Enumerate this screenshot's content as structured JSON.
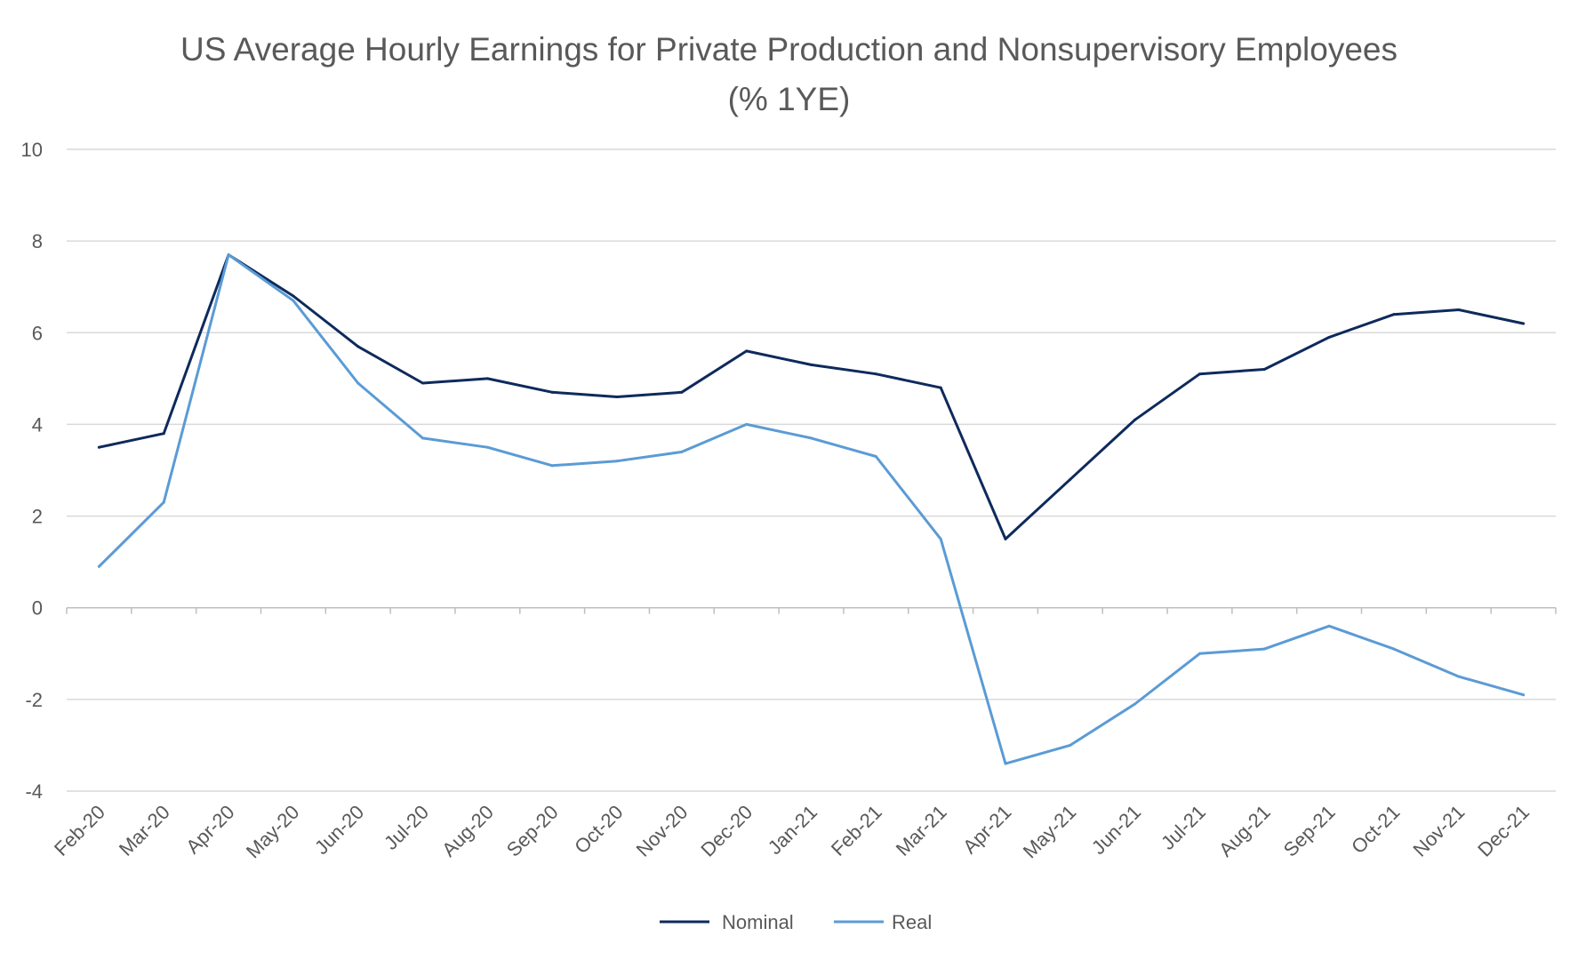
{
  "chart_data": {
    "type": "line",
    "title": "US Average Hourly Earnings for Private Production and Nonsupervisory Employees (% 1YE)",
    "xlabel": "",
    "ylabel": "",
    "ylim": [
      -4,
      10
    ],
    "yticks": [
      10,
      8,
      6,
      4,
      2,
      0,
      -2,
      -4
    ],
    "grid": true,
    "legend_position": "bottom-center",
    "categories": [
      "Feb-20",
      "Mar-20",
      "Apr-20",
      "May-20",
      "Jun-20",
      "Jul-20",
      "Aug-20",
      "Sep-20",
      "Oct-20",
      "Nov-20",
      "Dec-20",
      "Jan-21",
      "Feb-21",
      "Mar-21",
      "Apr-21",
      "May-21",
      "Jun-21",
      "Jul-21",
      "Aug-21",
      "Sep-21",
      "Oct-21",
      "Nov-21",
      "Dec-21"
    ],
    "series": [
      {
        "name": "Nominal",
        "color": "#0e2a5c",
        "values": [
          3.5,
          3.8,
          7.7,
          6.8,
          5.7,
          4.9,
          5.0,
          4.7,
          4.6,
          4.7,
          5.6,
          5.3,
          5.1,
          4.8,
          1.5,
          2.8,
          4.1,
          5.1,
          5.2,
          5.9,
          6.4,
          6.5,
          6.2
        ]
      },
      {
        "name": "Real",
        "color": "#5b9bd5",
        "values": [
          0.9,
          2.3,
          7.7,
          6.7,
          4.9,
          3.7,
          3.5,
          3.1,
          3.2,
          3.4,
          4.0,
          3.7,
          3.3,
          1.5,
          -3.4,
          -3.0,
          -2.1,
          -1.0,
          -0.9,
          -0.4,
          -0.9,
          -1.5,
          -1.9
        ]
      }
    ]
  },
  "style": {
    "grid_color": "#d9d9d9",
    "axis_color": "#bfbfbf",
    "text_color": "#595959"
  }
}
